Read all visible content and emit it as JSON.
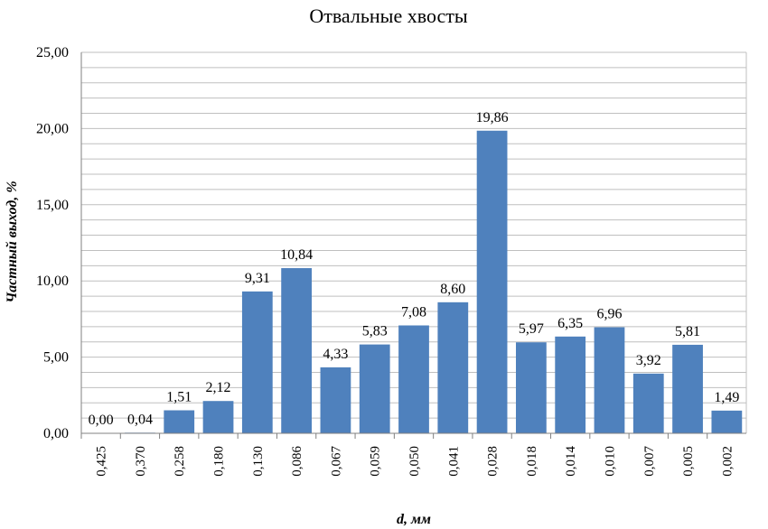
{
  "chart_data": {
    "type": "bar",
    "title": "Отвальные хвосты",
    "xlabel": "d, мм",
    "ylabel": "Частный выход, %",
    "categories": [
      "0,425",
      "0,370",
      "0,258",
      "0,180",
      "0,130",
      "0,086",
      "0,067",
      "0,059",
      "0,050",
      "0,041",
      "0,028",
      "0,018",
      "0,014",
      "0,010",
      "0,007",
      "0,005",
      "0,002"
    ],
    "values": [
      0.0,
      0.04,
      1.51,
      2.12,
      9.31,
      10.84,
      4.33,
      5.83,
      7.08,
      8.6,
      19.86,
      5.97,
      6.35,
      6.96,
      3.92,
      5.81,
      1.49
    ],
    "value_labels": [
      "0,00",
      "0,04",
      "1,51",
      "2,12",
      "9,31",
      "10,84",
      "4,33",
      "5,83",
      "7,08",
      "8,60",
      "19,86",
      "5,97",
      "6,35",
      "6,96",
      "3,92",
      "5,81",
      "1,49"
    ],
    "ylim": [
      0,
      25
    ],
    "yticks": [
      "0,00",
      "5,00",
      "10,00",
      "15,00",
      "20,00",
      "25,00"
    ],
    "ytick_values": [
      0,
      5,
      10,
      15,
      20,
      25
    ],
    "grid": true,
    "bar_color": "#4f81bd",
    "legend": "none"
  }
}
